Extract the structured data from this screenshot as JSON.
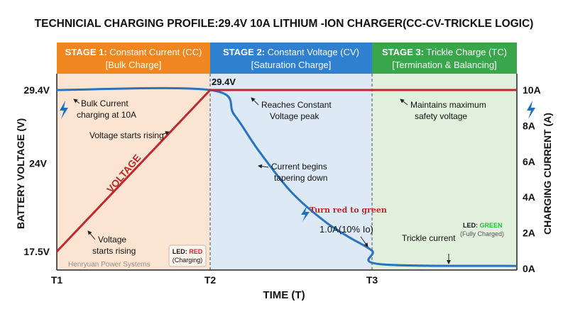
{
  "title": "TECHNICIAL CHARGING PROFILE:29.4V 10A LITHIUM -ION CHARGER(CC-CV-TRICKLE LOGIC)",
  "stages": [
    {
      "label_strong": "STAGE 1:",
      "label_rest": " Constant Current (CC)",
      "sub": "[Bulk Charge]",
      "color": "#f0861f",
      "bg": "#fbe5d2"
    },
    {
      "label_strong": "STAGE 2:",
      "label_rest": " Constant Voltage (CV)",
      "sub": "[Saturation Charge]",
      "color": "#2f80cf",
      "bg": "#dde9f5"
    },
    {
      "label_strong": "STAGE 3:",
      "label_rest": " Trickle Charge (TC)",
      "sub": "[Termination & Balancing]",
      "color": "#3aa64b",
      "bg": "#e1f0dc"
    }
  ],
  "axes": {
    "y_left_label": "BATTERY VOLTAGE (V)",
    "y_right_label": "CHARGING CURRENT (A)",
    "x_label": "TIME (T)",
    "x_ticks": [
      "T1",
      "T2",
      "T3"
    ],
    "y_left_ticks": [
      {
        "label": "29.4V",
        "value": 29.4
      },
      {
        "label": "24V",
        "value": 24
      },
      {
        "label": "17.5V",
        "value": 17.5
      }
    ],
    "y_right_ticks": [
      {
        "label": "10A",
        "value": 10
      },
      {
        "label": "8A",
        "value": 8
      },
      {
        "label": "6A",
        "value": 6
      },
      {
        "label": "4A",
        "value": 4
      },
      {
        "label": "2A",
        "value": 2
      },
      {
        "label": "0A",
        "value": 0
      }
    ]
  },
  "chart_data": {
    "type": "line",
    "x_categories": [
      "T1",
      "T2",
      "T3"
    ],
    "ylim_left": [
      17.5,
      29.4
    ],
    "ylim_right": [
      0,
      10
    ],
    "series": [
      {
        "name": "VOLTAGE",
        "axis": "left",
        "color": "#c0282d",
        "points": [
          {
            "t": 0,
            "v": 17.5
          },
          {
            "t": 1,
            "v": 29.4
          },
          {
            "t": 2,
            "v": 29.4
          },
          {
            "t": 3.1,
            "v": 29.4
          }
        ]
      },
      {
        "name": "",
        "axis": "right",
        "color": "#2a73c0",
        "points": [
          {
            "t": 0,
            "v": 10
          },
          {
            "t": 1,
            "v": 10
          },
          {
            "t": 1.15,
            "v": 8.6
          },
          {
            "t": 1.3,
            "v": 6.6
          },
          {
            "t": 1.5,
            "v": 4.3
          },
          {
            "t": 1.7,
            "v": 2.7
          },
          {
            "t": 1.85,
            "v": 1.8
          },
          {
            "t": 2,
            "v": 1.0
          },
          {
            "t": 2.05,
            "v": 0.25
          },
          {
            "t": 3.1,
            "v": 0.15
          }
        ]
      }
    ]
  },
  "point_labels": {
    "v_peak": "29.4V",
    "current_tail": "1.0A(10% Io)"
  },
  "annotations": {
    "bulk_current": [
      "Bulk Current",
      "charging at 10A"
    ],
    "voltage_rising_top": "Voltage starts rising",
    "voltage_rising_bottom": [
      "Voltage",
      "starts rising"
    ],
    "voltage_line_label": "VOLTAGE",
    "reaches_cv": [
      "Reaches Constant",
      "Voltage peak"
    ],
    "current_tapering": [
      "Current begins",
      "tapering down"
    ],
    "turn_red_green": "Turn red to green",
    "maintains": [
      "Maintains maximum",
      "safety voltage"
    ],
    "trickle_current": "Trickle current",
    "watermark": "Henryuan Power Systems"
  },
  "leds": {
    "red": {
      "prefix": "LED: ",
      "state": "RED",
      "note": "(Charging)",
      "color": "#d6222a"
    },
    "green": {
      "prefix": "LED: ",
      "state": "GREEN",
      "note": "(Fully Charged)",
      "color": "#22c23a"
    }
  },
  "icons": [
    "lightning-icon"
  ]
}
